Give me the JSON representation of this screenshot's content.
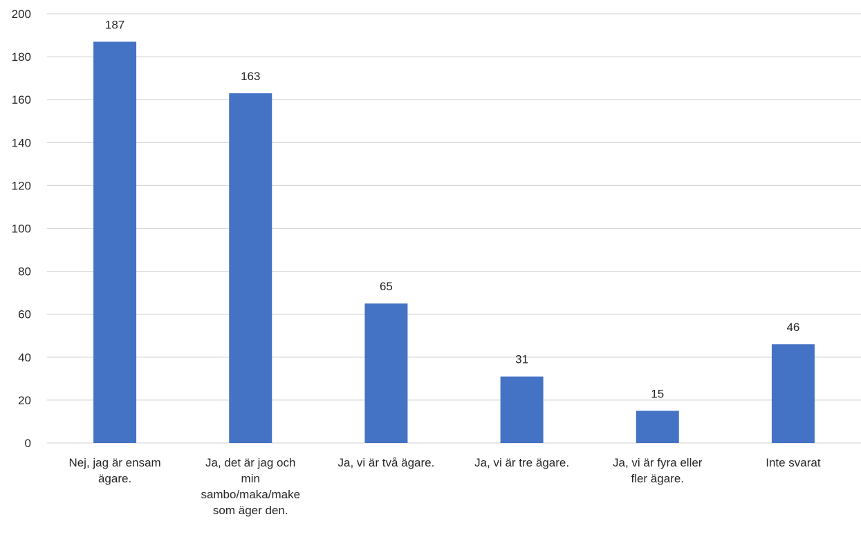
{
  "chart_data": {
    "type": "bar",
    "categories": [
      [
        "Nej, jag är ensam",
        "ägare."
      ],
      [
        "Ja, det är jag och",
        "min",
        "sambo/maka/make",
        "som äger den."
      ],
      [
        "Ja, vi är två ägare."
      ],
      [
        "Ja, vi är tre ägare."
      ],
      [
        "Ja, vi är fyra eller",
        "fler ägare."
      ],
      [
        "Inte svarat"
      ]
    ],
    "values": [
      187,
      163,
      65,
      31,
      15,
      46
    ],
    "data_labels": [
      "187",
      "163",
      "65",
      "31",
      "15",
      "46"
    ],
    "y_ticks": [
      "0",
      "20",
      "40",
      "60",
      "80",
      "100",
      "120",
      "140",
      "160",
      "180",
      "200"
    ],
    "ylim": [
      0,
      200
    ],
    "title": "",
    "xlabel": "",
    "ylabel": "",
    "grid": true,
    "legend": false,
    "colors": {
      "bar": "#4472c4",
      "grid": "#d9d9d9",
      "text": "#262626"
    }
  }
}
